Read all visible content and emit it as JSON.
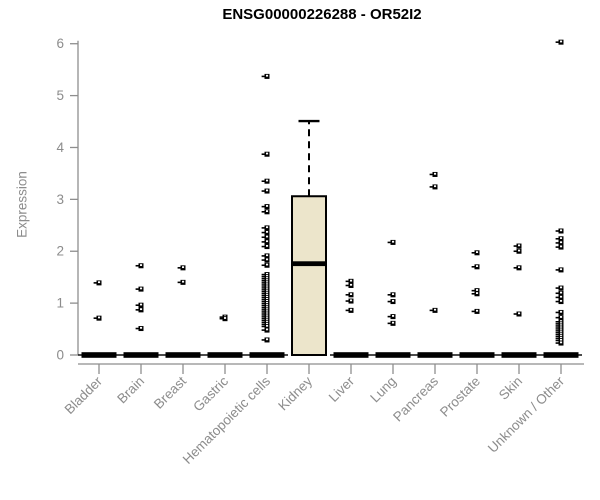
{
  "title": "ENSG00000226288 - OR52I2",
  "colors": {
    "title": "#000000",
    "axis": "#8e8e8e",
    "tick_text": "#8c8c8c",
    "point": "#000000",
    "point_center": "#ffffff",
    "box_fill": "#ece5cb",
    "box_border": "#000000",
    "zero_bar": "#000000"
  },
  "chart_data": {
    "type": "boxplot",
    "title": "ENSG00000226288 - OR52I2",
    "xlabel": "",
    "ylabel": "Expression",
    "ylim": [
      0,
      6.1
    ],
    "yticks": [
      "0",
      "1",
      "2",
      "3",
      "4",
      "5",
      "6"
    ],
    "grid": false,
    "legend": null,
    "categories": [
      "Bladder",
      "Brain",
      "Breast",
      "Gastric",
      "Hematopoietic cells",
      "Kidney",
      "Liver",
      "Lung",
      "Pancreas",
      "Prostate",
      "Skin",
      "Unknown / Other"
    ],
    "groups": [
      {
        "label": "Bladder",
        "zero_bar": true,
        "points": [
          1.39,
          0.71
        ]
      },
      {
        "label": "Brain",
        "zero_bar": true,
        "points": [
          1.72,
          1.27,
          0.96,
          0.87,
          0.51
        ]
      },
      {
        "label": "Breast",
        "zero_bar": true,
        "points": [
          1.68,
          1.4
        ]
      },
      {
        "label": "Gastric",
        "zero_bar": true,
        "points": [
          0.73,
          0.7
        ]
      },
      {
        "label": "Hematopoietic cells",
        "zero_bar": true,
        "points": [
          5.37,
          3.87,
          3.35,
          3.16,
          2.86,
          2.76,
          2.45,
          2.36,
          2.27,
          2.18,
          2.09,
          1.91,
          1.83,
          1.73,
          1.55,
          1.51,
          1.47,
          1.43,
          1.39,
          1.35,
          1.31,
          1.27,
          1.23,
          1.19,
          1.15,
          1.11,
          1.07,
          1.03,
          0.99,
          0.95,
          0.91,
          0.87,
          0.83,
          0.79,
          0.75,
          0.71,
          0.67,
          0.63,
          0.59,
          0.55,
          0.48,
          0.29
        ]
      },
      {
        "label": "Kidney",
        "zero_bar": false,
        "points": [],
        "box": {
          "whisker_low": 0,
          "q1": 0,
          "median": 1.76,
          "q3": 3.06,
          "whisker_high": 4.51
        }
      },
      {
        "label": "Liver",
        "zero_bar": true,
        "points": [
          1.42,
          1.34,
          1.16,
          1.04,
          0.86
        ]
      },
      {
        "label": "Lung",
        "zero_bar": true,
        "points": [
          2.17,
          1.16,
          1.03,
          0.74,
          0.61
        ]
      },
      {
        "label": "Pancreas",
        "zero_bar": true,
        "points": [
          3.48,
          3.24,
          0.86
        ]
      },
      {
        "label": "Prostate",
        "zero_bar": true,
        "points": [
          1.97,
          1.7,
          1.24,
          1.18,
          0.84
        ]
      },
      {
        "label": "Skin",
        "zero_bar": true,
        "points": [
          2.1,
          2.0,
          1.68,
          0.79
        ]
      },
      {
        "label": "Unknown / Other",
        "zero_bar": true,
        "points": [
          6.03,
          2.39,
          2.24,
          2.16,
          2.08,
          1.64,
          1.29,
          1.19,
          1.11,
          1.03,
          0.82,
          0.72,
          0.64,
          0.6,
          0.56,
          0.52,
          0.48,
          0.44,
          0.4,
          0.36,
          0.32,
          0.28,
          0.23
        ]
      }
    ]
  }
}
